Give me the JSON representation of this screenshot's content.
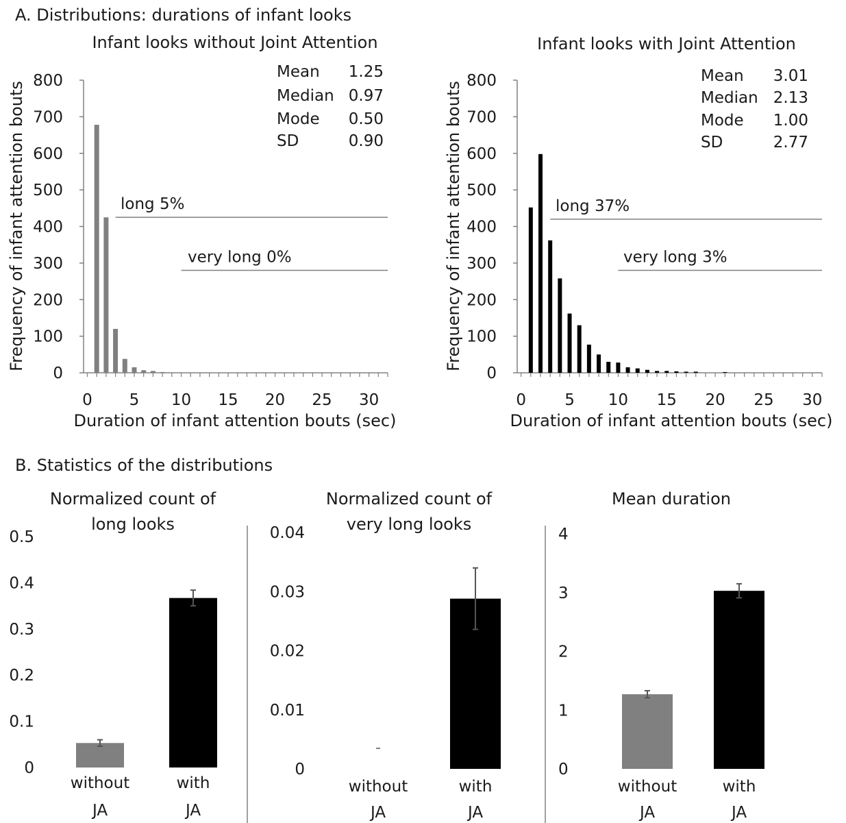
{
  "section_a_title": "A. Distributions: durations of infant looks",
  "section_b_title": "B. Statistics of the distributions",
  "colors": {
    "without_ja": "#808080",
    "with_ja": "#000000",
    "axis": "#808080",
    "text": "#1a1a1a"
  },
  "chart_data": [
    {
      "type": "bar",
      "title": "Infant looks without Joint Attention",
      "xlabel": "Duration of infant attention bouts (sec)",
      "ylabel": "Frequency of infant attention bouts",
      "xlim": [
        0,
        32
      ],
      "ylim": [
        0,
        800
      ],
      "xticks": [
        0,
        5,
        10,
        15,
        20,
        25,
        30
      ],
      "yticks": [
        0,
        100,
        200,
        300,
        400,
        500,
        600,
        700,
        800
      ],
      "x": [
        1,
        2,
        3,
        4,
        5,
        6,
        7,
        8,
        9,
        10,
        11,
        12,
        13,
        14,
        15,
        16,
        17,
        18,
        19,
        20
      ],
      "values": [
        678,
        425,
        120,
        38,
        15,
        7,
        5,
        2,
        1,
        1,
        0,
        0,
        0,
        0,
        0,
        0,
        0,
        0,
        0,
        0
      ],
      "color": "#808080",
      "stats": [
        {
          "label": "Mean",
          "value": "1.25"
        },
        {
          "label": "Median",
          "value": "0.97"
        },
        {
          "label": "Mode",
          "value": "0.50"
        },
        {
          "label": "SD",
          "value": "0.90"
        }
      ],
      "annotations": [
        {
          "text": "long 5%",
          "x_start": 3,
          "x_end": 32,
          "y": 425
        },
        {
          "text": "very long 0%",
          "x_start": 10,
          "x_end": 32,
          "y": 280
        }
      ]
    },
    {
      "type": "bar",
      "title": "Infant looks with Joint Attention",
      "xlabel": "Duration of infant attention bouts (sec)",
      "ylabel": "Frequency of infant attention bouts",
      "xlim": [
        0,
        31
      ],
      "ylim": [
        0,
        800
      ],
      "xticks": [
        0,
        5,
        10,
        15,
        20,
        25,
        30
      ],
      "yticks": [
        0,
        100,
        200,
        300,
        400,
        500,
        600,
        700,
        800
      ],
      "x": [
        1,
        2,
        3,
        4,
        5,
        6,
        7,
        8,
        9,
        10,
        11,
        12,
        13,
        14,
        15,
        16,
        17,
        18,
        19,
        20,
        21
      ],
      "values": [
        452,
        598,
        362,
        258,
        162,
        130,
        77,
        50,
        30,
        28,
        15,
        12,
        8,
        5,
        5,
        4,
        3,
        3,
        0,
        0,
        2
      ],
      "color": "#000000",
      "stats": [
        {
          "label": "Mean",
          "value": "3.01"
        },
        {
          "label": "Median",
          "value": "2.13"
        },
        {
          "label": "Mode",
          "value": "1.00"
        },
        {
          "label": "SD",
          "value": "2.77"
        }
      ],
      "annotations": [
        {
          "text": "long 37%",
          "x_start": 3,
          "x_end": 31,
          "y": 420
        },
        {
          "text": "very long 3%",
          "x_start": 10,
          "x_end": 31,
          "y": 280
        }
      ]
    },
    {
      "type": "bar",
      "title": "Normalized count of long looks",
      "ylim": [
        0,
        0.5
      ],
      "yticks": [
        "0",
        "0.1",
        "0.2",
        "0.3",
        "0.4",
        "0.5"
      ],
      "categories": [
        "without JA",
        "with JA"
      ],
      "values": [
        0.053,
        0.367
      ],
      "errors": [
        0.007,
        0.017
      ],
      "colors": [
        "#808080",
        "#000000"
      ]
    },
    {
      "type": "bar",
      "title": "Normalized count of very long looks",
      "ylim": [
        0,
        0.04
      ],
      "yticks": [
        "0",
        "0.01",
        "0.02",
        "0.03",
        "0.04"
      ],
      "categories": [
        "without JA",
        "with JA"
      ],
      "values": [
        0.0,
        0.0288
      ],
      "errors": [
        0.0001,
        0.0052
      ],
      "colors": [
        "#808080",
        "#000000"
      ]
    },
    {
      "type": "bar",
      "title": "Mean duration",
      "ylim": [
        0,
        4
      ],
      "yticks": [
        "0",
        "1",
        "2",
        "3",
        "4"
      ],
      "categories": [
        "without JA",
        "with JA"
      ],
      "values": [
        1.27,
        3.03
      ],
      "errors": [
        0.06,
        0.12
      ],
      "colors": [
        "#808080",
        "#000000"
      ]
    }
  ]
}
